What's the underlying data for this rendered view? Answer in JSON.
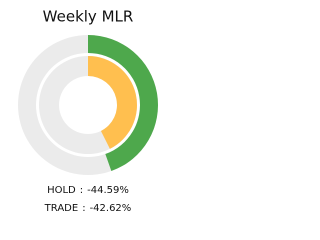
{
  "chart_data": {
    "type": "radial_bar",
    "title": "Weekly MLR",
    "categories": [
      "HOLD",
      "TRADE"
    ],
    "values": [
      -44.59,
      -42.62
    ],
    "value_labels": [
      "-44.59%",
      "-42.62%"
    ],
    "colors": [
      "#4ea84c",
      "#ffbf4f"
    ],
    "track_color": "#ebebeb",
    "legend_separator": ":"
  }
}
